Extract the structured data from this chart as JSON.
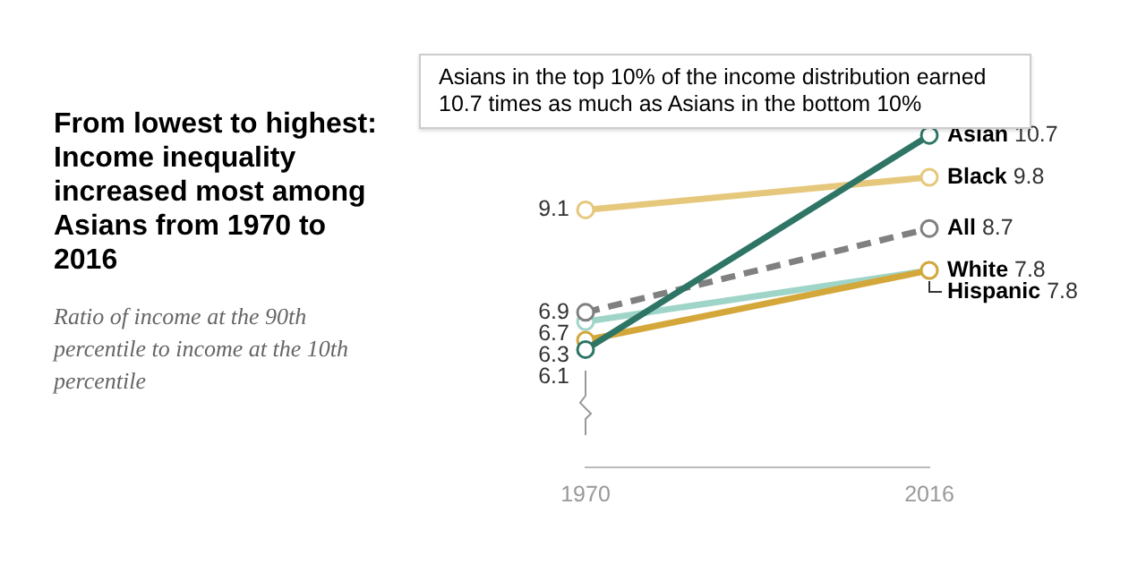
{
  "chart_data": {
    "type": "line",
    "title": "From lowest to highest: Income inequality increased most among Asians from 1970 to 2016",
    "subtitle": "Ratio of income at the 90th percentile to income at the 10th percentile",
    "categories": [
      "1970",
      "2016"
    ],
    "series": [
      {
        "color": "#2e7566",
        "values": [
          6.1,
          10.7
        ],
        "value_labels": [
          "6.1",
          "Asian 10.7"
        ]
      },
      {
        "color": "#e6c87c",
        "values": [
          9.1,
          9.8
        ],
        "value_labels": [
          "9.1",
          "Black 9.8"
        ]
      },
      {
        "color": "#808080",
        "values": [
          6.9,
          8.7
        ],
        "line_style": "dashed",
        "value_labels": [
          "6.9",
          "All 8.7"
        ]
      },
      {
        "color": "#d4a73a",
        "values": [
          6.3,
          7.8
        ],
        "value_labels": [
          "6.3",
          "White 7.8"
        ]
      },
      {
        "color": "#9fd5c8",
        "values": [
          6.7,
          7.8
        ],
        "value_labels": [
          "6.7",
          "Hispanic 7.8"
        ]
      }
    ],
    "marker": "circle",
    "line_style": "solid",
    "legend": false,
    "grid": false,
    "annotations": [
      {
        "text": "Asians in the top 10% of the income distribution earned 10.7 times as much as Asians in the bottom 10%",
        "x": "2016",
        "y": 10.7
      }
    ]
  }
}
